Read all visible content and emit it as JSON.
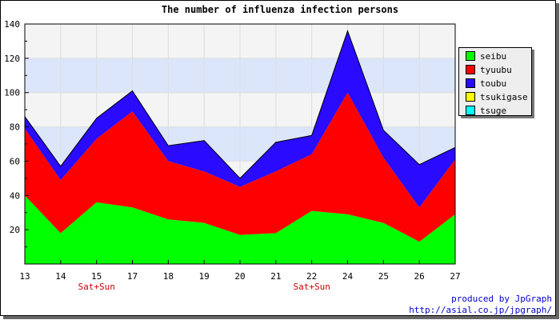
{
  "chart_data": {
    "type": "area",
    "stacked": true,
    "title": "The number of influenza infection persons",
    "categories": [
      "13",
      "14",
      "15",
      "17",
      "18",
      "19",
      "20",
      "21",
      "22",
      "24",
      "25",
      "26",
      "27"
    ],
    "category_notes": [
      {
        "index": 2,
        "text": "Sat+Sun"
      },
      {
        "index": 8,
        "text": "Sat+Sun"
      }
    ],
    "ylim": [
      0,
      140
    ],
    "yticks": [
      20,
      40,
      60,
      80,
      100,
      120,
      140
    ],
    "grid": true,
    "bands": [
      {
        "from": 60,
        "to": 80,
        "color": "#dbe6fb"
      },
      {
        "from": 100,
        "to": 120,
        "color": "#dbe6fb"
      }
    ],
    "legend_position": "right",
    "series": [
      {
        "name": "seibu",
        "color": "#00ff00",
        "values": [
          40,
          18,
          36,
          33,
          26,
          24,
          17,
          18,
          31,
          29,
          24,
          13,
          29
        ]
      },
      {
        "name": "tyuubu",
        "color": "#ff0000",
        "values": [
          39,
          31,
          37,
          56,
          34,
          30,
          28,
          36,
          33,
          71,
          38,
          20,
          32
        ]
      },
      {
        "name": "toubu",
        "color": "#2a0bff",
        "values": [
          7,
          8,
          12,
          12,
          9,
          18,
          5,
          17,
          11,
          36,
          16,
          25,
          7
        ]
      },
      {
        "name": "tsukigase",
        "color": "#ffff00",
        "values": [
          0,
          0,
          0,
          0,
          0,
          0,
          0,
          0,
          0,
          0,
          0,
          0,
          0
        ]
      },
      {
        "name": "tsuge",
        "color": "#00ffff",
        "values": [
          0,
          0,
          0,
          0,
          0,
          0,
          0,
          0,
          0,
          0,
          0,
          0,
          0
        ]
      }
    ]
  },
  "credits": {
    "line1": "produced by JpGraph",
    "line2": "http://asial.co.jp/jpgraph/"
  }
}
